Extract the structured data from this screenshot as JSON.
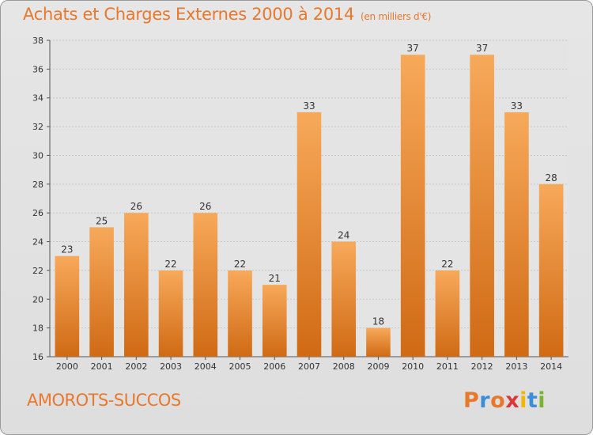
{
  "header": {
    "title": "Achats et Charges Externes 2000 à 2014",
    "subtitle": "(en milliers d'€)"
  },
  "commune": "AMOROTS-SUCCOS",
  "logo": {
    "letters": [
      "P",
      "r",
      "o",
      "x",
      "i",
      "t",
      "i"
    ],
    "colors": [
      "#e8782c",
      "#3a8fd8",
      "#e8782c",
      "#d83a3a",
      "#f2b705",
      "#3a8fd8",
      "#78b42c"
    ]
  },
  "colors": {
    "bar_light": "#f7a95a",
    "bar_dark": "#d06a14",
    "accent": "#e8782c"
  },
  "chart_data": {
    "type": "bar",
    "title": "Achats et Charges Externes 2000 à 2014",
    "subtitle": "(en milliers d'€)",
    "categories": [
      "2000",
      "2001",
      "2002",
      "2003",
      "2004",
      "2005",
      "2006",
      "2007",
      "2008",
      "2009",
      "2010",
      "2011",
      "2012",
      "2013",
      "2014"
    ],
    "values": [
      23,
      25,
      26,
      22,
      26,
      22,
      21,
      33,
      24,
      18,
      37,
      22,
      37,
      33,
      28
    ],
    "ylim": [
      16,
      38
    ],
    "yticks": [
      16,
      18,
      20,
      22,
      24,
      26,
      28,
      30,
      32,
      34,
      36,
      38
    ],
    "grid": true
  }
}
